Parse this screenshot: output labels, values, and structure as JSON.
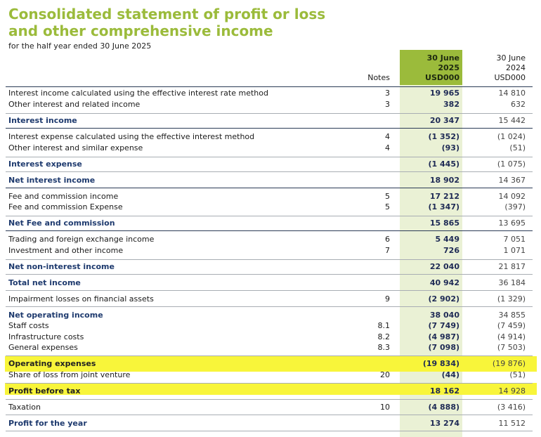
{
  "title_line1": "Consolidated statement of profit or loss",
  "title_line2": "and other comprehensive income",
  "subtitle": "for the half year ended 30 June 2025",
  "headers": {
    "notes": "Notes",
    "current": {
      "line1": "30 June",
      "line2": "2025",
      "line3": "USD000"
    },
    "previous": {
      "line1": "30 June",
      "line2": "2024",
      "line3": "USD000"
    }
  },
  "rows": [
    {
      "label": "Interest income calculated using the effective interest rate method",
      "note": "3",
      "current": "19 965",
      "previous": "14 810"
    },
    {
      "label": "Other interest and related income",
      "note": "3",
      "current": "382",
      "previous": "632"
    },
    {
      "label": "Interest income",
      "note": "",
      "current": "20 347",
      "previous": "15 442"
    },
    {
      "label": "Interest expense calculated using the effective interest method",
      "note": "4",
      "current": "(1 352)",
      "previous": "(1 024)"
    },
    {
      "label": "Other interest and similar expense",
      "note": "4",
      "current": "(93)",
      "previous": "(51)"
    },
    {
      "label": "Interest expense",
      "note": "",
      "current": "(1 445)",
      "previous": "(1 075)"
    },
    {
      "label": "Net interest income",
      "note": "",
      "current": "18 902",
      "previous": "14 367"
    },
    {
      "label": "Fee and commission income",
      "note": "5",
      "current": "17 212",
      "previous": "14 092"
    },
    {
      "label": "Fee and commission Expense",
      "note": "5",
      "current": "(1 347)",
      "previous": "(397)"
    },
    {
      "label": "Net Fee and commission",
      "note": "",
      "current": "15 865",
      "previous": "13 695"
    },
    {
      "label": "Trading and foreign exchange income",
      "note": "6",
      "current": "5 449",
      "previous": "7 051"
    },
    {
      "label": "Investment and other income",
      "note": "7",
      "current": "726",
      "previous": "1 071"
    },
    {
      "label": "Net non-interest income",
      "note": "",
      "current": "22 040",
      "previous": "21 817"
    },
    {
      "label": "Total net income",
      "note": "",
      "current": "40 942",
      "previous": "36 184"
    },
    {
      "label": "Impairment losses on financial assets",
      "note": "9",
      "current": "(2 902)",
      "previous": "(1 329)"
    },
    {
      "label": "Net operating income",
      "note": "",
      "current": "38 040",
      "previous": "34 855"
    },
    {
      "label": "Staff costs",
      "note": "8.1",
      "current": "(7 749)",
      "previous": "(7 459)"
    },
    {
      "label": "Infrastructure costs",
      "note": "8.2",
      "current": "(4 987)",
      "previous": "(4 914)"
    },
    {
      "label": "General expenses",
      "note": "8.3",
      "current": "(7 098)",
      "previous": "(7 503)"
    },
    {
      "label": "Operating expenses",
      "note": "",
      "current": "(19 834)",
      "previous": "(19 876)"
    },
    {
      "label": "Share of loss from joint venture",
      "note": "20",
      "current": "(44)",
      "previous": "(51)"
    },
    {
      "label": "Profit before tax",
      "note": "",
      "current": "18 162",
      "previous": "14 928"
    },
    {
      "label": "Taxation",
      "note": "10",
      "current": "(4 888)",
      "previous": "(3 416)"
    },
    {
      "label": "Profit for the year",
      "note": "",
      "current": "13 274",
      "previous": "11 512"
    }
  ]
}
